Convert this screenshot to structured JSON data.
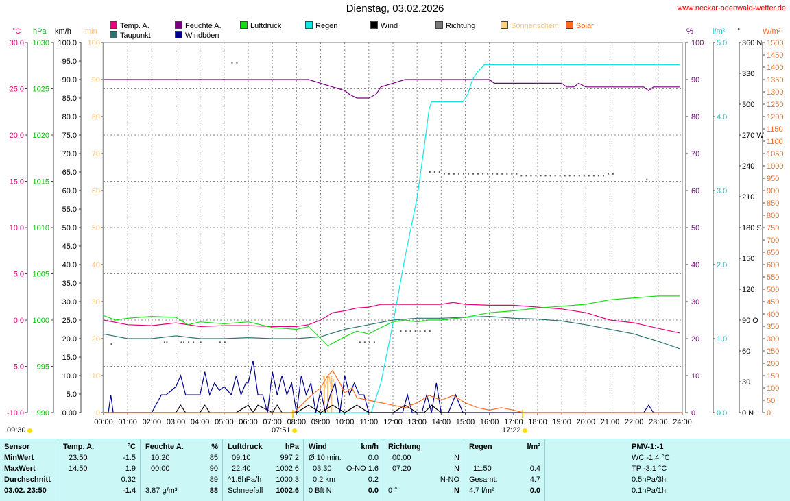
{
  "header": {
    "title": "Dienstag, 03.02.2026",
    "url": "www.neckar-odenwald-wetter.de"
  },
  "legend": [
    {
      "label": "Temp. A.",
      "color": "#e8007a"
    },
    {
      "label": "Feuchte A.",
      "color": "#7a0080"
    },
    {
      "label": "Luftdruck",
      "color": "#10e010"
    },
    {
      "label": "Regen",
      "color": "#10e8e8"
    },
    {
      "label": "Wind",
      "color": "#000000"
    },
    {
      "label": "Richtung",
      "color": "#7a7a7a"
    },
    {
      "label": "Sonnenschein",
      "color": "#ffd080"
    },
    {
      "label": "Solar",
      "color": "#ff6a20"
    },
    {
      "label": "Taupunkt",
      "color": "#2f7373"
    },
    {
      "label": "Windböen",
      "color": "#00008c"
    }
  ],
  "units": {
    "temp": "°C",
    "pressure": "hPa",
    "wind": "km/h",
    "sun": "min",
    "humidity": "%",
    "rain": "l/m²",
    "direction": "°",
    "solar": "W/m²"
  },
  "sun_times": {
    "left": "09:30",
    "rise": "07:51",
    "set": "17:22"
  },
  "chart_data": {
    "type": "line",
    "x_ticks": [
      "00:00",
      "01:00",
      "02:00",
      "03:00",
      "04:00",
      "05:00",
      "06:00",
      "07:00",
      "08:00",
      "09:00",
      "10:00",
      "11:00",
      "12:00",
      "13:00",
      "14:00",
      "15:00",
      "16:00",
      "17:00",
      "18:00",
      "19:00",
      "20:00",
      "21:00",
      "22:00",
      "23:00",
      "24:00"
    ],
    "axes": {
      "temp": {
        "ticks": [
          "30.0",
          "25.0",
          "20.0",
          "15.0",
          "10.0",
          "5.0",
          "0.0",
          "-5.0",
          "-10.0"
        ],
        "ylim": [
          -10,
          30
        ],
        "color": "#e8007a"
      },
      "pressure": {
        "ticks": [
          "1030",
          "1025",
          "1020",
          "1015",
          "1010",
          "1005",
          "1000",
          "995",
          "990"
        ],
        "ylim": [
          990,
          1030
        ],
        "color": "#10c010"
      },
      "wind": {
        "ticks": [
          "100.0",
          "95.0",
          "90.0",
          "85.0",
          "80.0",
          "75.0",
          "70.0",
          "65.0",
          "60.0",
          "55.0",
          "50.0",
          "45.0",
          "40.0",
          "35.0",
          "30.0",
          "25.0",
          "20.0",
          "15.0",
          "10.0",
          "5.0",
          "0.00"
        ],
        "ylim": [
          0,
          100
        ],
        "color": "#000000"
      },
      "sun": {
        "ticks": [
          "100",
          "90",
          "80",
          "70",
          "60",
          "50",
          "40",
          "30",
          "20",
          "10",
          "0"
        ],
        "ylim": [
          0,
          100
        ],
        "color": "#ffc070"
      },
      "humidity": {
        "ticks": [
          "100",
          "90",
          "80",
          "70",
          "60",
          "50",
          "40",
          "30",
          "20",
          "10",
          "0"
        ],
        "ylim": [
          0,
          100
        ],
        "color": "#7a0080"
      },
      "rain": {
        "ticks": [
          "5.0",
          "4.0",
          "3.0",
          "2.0",
          "1.0",
          "0.0"
        ],
        "ylim": [
          0,
          5
        ],
        "color": "#10c8c8"
      },
      "direction": {
        "ticks": [
          "360 N",
          "330",
          "300",
          "270 W",
          "240",
          "210",
          "180 S",
          "150",
          "120",
          "90 O",
          "60",
          "30",
          "0 N"
        ],
        "ylim": [
          0,
          360
        ],
        "color": "#000000"
      },
      "solar": {
        "ticks": [
          "1500",
          "1450",
          "1400",
          "1350",
          "1300",
          "1250",
          "1200",
          "1150",
          "1100",
          "1050",
          "1000",
          "950",
          "900",
          "850",
          "800",
          "750",
          "700",
          "650",
          "600",
          "550",
          "500",
          "450",
          "400",
          "350",
          "300",
          "250",
          "200",
          "150",
          "100",
          "50",
          "0"
        ],
        "ylim": [
          0,
          1500
        ],
        "color": "#ff6a20"
      }
    },
    "series": [
      {
        "name": "Feuchte A.",
        "axis": "humidity",
        "color": "#7a0080",
        "x": [
          0,
          8.5,
          9.0,
          9.5,
          10.0,
          10.2,
          10.5,
          11.0,
          11.3,
          11.5,
          12.0,
          12.5,
          13.0,
          14.0,
          15.0,
          16.0,
          16.2,
          17.0,
          18.0,
          19.0,
          19.2,
          19.5,
          19.7,
          20.0,
          21.0,
          22.0,
          22.4,
          22.6,
          22.8,
          23.0,
          23.9
        ],
        "y": [
          90,
          90,
          89,
          88,
          87,
          86,
          85,
          85,
          86,
          88,
          89,
          90,
          90,
          90,
          90,
          90,
          89,
          89,
          89,
          89,
          88,
          88,
          89,
          88,
          88,
          88,
          88,
          87,
          88,
          88,
          88
        ]
      },
      {
        "name": "Temp. A.",
        "axis": "temp",
        "color": "#e8007a",
        "x": [
          0,
          1,
          2,
          3,
          4,
          5,
          6,
          7,
          8,
          8.5,
          9,
          9.5,
          10,
          10.5,
          11,
          11.5,
          12,
          13,
          14,
          14.5,
          15,
          16,
          17,
          18,
          19,
          20,
          21,
          22,
          23,
          23.9
        ],
        "y": [
          0.0,
          -0.5,
          -0.6,
          -0.3,
          -0.7,
          -0.6,
          -0.6,
          -0.7,
          -0.7,
          -0.5,
          0.0,
          0.8,
          1.0,
          1.3,
          1.4,
          1.7,
          1.7,
          1.7,
          1.7,
          1.9,
          1.7,
          1.6,
          1.6,
          1.4,
          1.2,
          0.8,
          0.0,
          -0.3,
          -0.9,
          -1.4
        ]
      },
      {
        "name": "Taupunkt",
        "axis": "temp",
        "color": "#2f7373",
        "x": [
          0,
          1,
          2,
          3,
          4,
          5,
          6,
          7,
          8,
          9,
          10,
          11,
          12,
          13,
          14,
          15,
          16,
          17,
          18,
          19,
          20,
          21,
          22,
          23,
          23.9
        ],
        "y": [
          -1.5,
          -2.0,
          -2.0,
          -1.7,
          -2.0,
          -2.0,
          -1.9,
          -2.0,
          -2.0,
          -1.8,
          -1.0,
          -0.5,
          0.0,
          0.2,
          0.2,
          0.3,
          0.4,
          0.2,
          0.1,
          -0.1,
          -0.5,
          -1.0,
          -1.5,
          -2.3,
          -3.1
        ]
      },
      {
        "name": "Luftdruck",
        "axis": "pressure",
        "color": "#10e010",
        "x": [
          0,
          0.5,
          1,
          2,
          3,
          3.5,
          4,
          5,
          6,
          7,
          8,
          8.5,
          9,
          9.3,
          9.5,
          10,
          10.5,
          11,
          11.5,
          12,
          12.5,
          13,
          13.5,
          14,
          15,
          16,
          17,
          18,
          19,
          20,
          21,
          22,
          23,
          23.9
        ],
        "y": [
          1000.5,
          1000.0,
          1000.2,
          1000.4,
          1000.3,
          999.5,
          999.8,
          999.6,
          999.8,
          999.2,
          999.0,
          999.3,
          998.0,
          997.2,
          997.5,
          998.2,
          998.8,
          998.5,
          999.2,
          999.8,
          1000.0,
          999.8,
          1000.0,
          1000.0,
          1000.3,
          1000.8,
          1001.0,
          1001.3,
          1001.5,
          1001.7,
          1002.2,
          1002.4,
          1002.6,
          1002.6
        ]
      },
      {
        "name": "Regen",
        "axis": "rain",
        "color": "#10e8e8",
        "x": [
          0,
          11.1,
          11.5,
          12.0,
          12.5,
          13.0,
          13.3,
          13.5,
          13.6,
          14.0,
          14.5,
          14.9,
          15.1,
          15.3,
          15.5,
          15.8,
          16.0,
          17.0,
          18.0,
          19.0,
          20.0,
          21.0,
          22.0,
          23.0,
          23.9
        ],
        "y": [
          0,
          0,
          0.4,
          1.2,
          2.1,
          2.9,
          3.6,
          4.1,
          4.2,
          4.2,
          4.2,
          4.2,
          4.3,
          4.5,
          4.6,
          4.7,
          4.7,
          4.7,
          4.7,
          4.7,
          4.7,
          4.7,
          4.7,
          4.7,
          4.7
        ]
      },
      {
        "name": "Windböen",
        "axis": "wind",
        "color": "#00008c",
        "x": [
          0,
          0.2,
          0.3,
          0.4,
          0.6,
          1,
          2,
          2.4,
          2.6,
          3.0,
          3.2,
          3.4,
          3.6,
          4.0,
          4.2,
          4.4,
          4.6,
          4.8,
          5.0,
          5.3,
          5.5,
          5.7,
          5.9,
          6.0,
          6.2,
          6.4,
          6.6,
          6.8,
          7.0,
          7.2,
          7.4,
          7.6,
          7.8,
          8.0,
          8.2,
          8.4,
          8.6,
          8.8,
          9.0,
          9.2,
          9.4,
          9.6,
          9.8,
          10.0,
          10.2,
          10.4,
          10.6,
          10.8,
          11.0,
          11.2,
          11.4,
          11.6,
          12,
          12.4,
          12.6,
          12.8,
          13,
          13.2,
          13.4,
          13.6,
          13.8,
          14,
          14.3,
          14.6,
          14.9,
          15,
          16,
          17,
          18,
          19,
          20,
          21,
          22,
          22.4,
          22.6,
          22.8,
          23,
          23.9
        ],
        "y": [
          0,
          0,
          4.8,
          0,
          0,
          0,
          0,
          4.8,
          4.8,
          7.0,
          10.0,
          4.8,
          4.8,
          4.8,
          11.0,
          4.8,
          8.0,
          6.0,
          7.0,
          4.8,
          10.0,
          4.8,
          8.0,
          8.0,
          14.0,
          4.8,
          4.8,
          0,
          11.0,
          4.8,
          10.0,
          4.8,
          8.0,
          0,
          10.0,
          4.8,
          8.0,
          0,
          6.0,
          0,
          4.8,
          8.0,
          0,
          10.0,
          4.8,
          8.0,
          4.8,
          4.8,
          0,
          0,
          0,
          0,
          0,
          0,
          4.8,
          0,
          0,
          0,
          4.8,
          0,
          8.0,
          0,
          0,
          4.8,
          0,
          0,
          0,
          0,
          0,
          0,
          0,
          0,
          0,
          0,
          2.0,
          0,
          0,
          0
        ]
      },
      {
        "name": "Wind",
        "axis": "wind",
        "color": "#000000",
        "x": [
          0,
          3.0,
          3.2,
          3.4,
          4.0,
          4.2,
          4.4,
          5.0,
          5.5,
          6.0,
          6.2,
          6.4,
          7.0,
          7.2,
          7.4,
          8.0,
          8.5,
          9.0,
          9.5,
          10.0,
          10.5,
          11.0,
          12,
          12.5,
          13.0,
          13.3,
          13.6,
          14,
          15
        ],
        "y": [
          0,
          0,
          2.0,
          0,
          0,
          2.0,
          0,
          0,
          0,
          2.0,
          0,
          2.0,
          0,
          2.0,
          0,
          0,
          2.0,
          0,
          2.0,
          0,
          2.0,
          0,
          0,
          2.0,
          0,
          0,
          2.0,
          0,
          0
        ]
      },
      {
        "name": "Solar",
        "axis": "solar",
        "color": "#ff6a20",
        "x": [
          0,
          7.9,
          8.2,
          8.5,
          9.0,
          9.3,
          9.5,
          9.8,
          10.0,
          10.3,
          10.5,
          11.0,
          11.5,
          12.0,
          12.5,
          13.0,
          13.5,
          14.0,
          14.5,
          15.0,
          15.5,
          16.0,
          16.5,
          17.0,
          17.4,
          24
        ],
        "y": [
          0,
          0,
          30,
          60,
          100,
          150,
          170,
          120,
          80,
          100,
          60,
          50,
          40,
          30,
          20,
          40,
          70,
          50,
          70,
          40,
          20,
          10,
          20,
          10,
          0,
          0
        ]
      },
      {
        "name": "Sonnenschein",
        "axis": "sun",
        "color": "#ffc070",
        "x": [
          9.1,
          9.2,
          9.35,
          9.45,
          9.55
        ],
        "y": [
          10,
          7,
          10,
          6,
          9
        ]
      }
    ],
    "direction_dots": [
      {
        "x": [
          5.3,
          5.5
        ],
        "y": [
          94.5,
          94.5
        ]
      },
      {
        "x": [
          0.3,
          2.5,
          2.6,
          3.2,
          3.3,
          3.5,
          3.7,
          4.0,
          4.8,
          5.0
        ],
        "y": [
          18.5,
          19,
          19,
          19,
          19,
          19,
          19,
          19,
          19,
          19
        ]
      },
      {
        "x": [
          10.6,
          10.8,
          11.0,
          11.2
        ],
        "y": [
          19,
          19,
          19,
          19
        ]
      },
      {
        "x": [
          12.3,
          12.5,
          12.7,
          12.9,
          13.1,
          13.3,
          13.5
        ],
        "y": [
          22,
          22,
          22,
          22,
          22,
          22,
          22
        ]
      },
      {
        "x": [
          13.5,
          13.7,
          13.9,
          14.1,
          14.3,
          14.5,
          14.7,
          14.9,
          15.1,
          15.3,
          15.5,
          15.7,
          15.9,
          16.1,
          16.3,
          16.5,
          16.7,
          16.9,
          17.1,
          17.3,
          17.5,
          17.7,
          17.9,
          18.1,
          18.3,
          18.5,
          18.7,
          18.9,
          19.1,
          19.3,
          19.5,
          19.7,
          19.9,
          20.1,
          20.3,
          20.5,
          20.7,
          20.9,
          21.1,
          22.5
        ],
        "y": [
          65,
          65,
          65,
          64.5,
          64.5,
          64.5,
          64.5,
          64.5,
          64.5,
          64.5,
          64.5,
          64.5,
          64.5,
          64.5,
          64.5,
          64.5,
          64.5,
          64.5,
          64.5,
          64,
          64,
          64,
          64,
          64,
          64,
          64,
          64,
          64,
          64,
          64,
          64,
          64,
          64,
          64,
          64,
          64,
          64,
          64.5,
          64.5,
          63
        ]
      }
    ],
    "sun_bars": [
      {
        "x": 9.15,
        "y": 10
      },
      {
        "x": 9.3,
        "y": 10
      },
      {
        "x": 9.45,
        "y": 10
      }
    ]
  },
  "table": {
    "sensor": {
      "header": "Sensor",
      "rows": [
        "MinWert",
        "MaxWert",
        "Durchschnitt",
        "03.02. 23:50"
      ]
    },
    "temp": {
      "header": "Temp. A.",
      "unit": "°C",
      "times": [
        "23:50",
        "14:50",
        "",
        ""
      ],
      "values": [
        "-1.5",
        "1.9",
        "0.32",
        "-1.4"
      ]
    },
    "humidity": {
      "header": "Feuchte A.",
      "unit": "%",
      "times": [
        "10:20",
        "00:00",
        "",
        "3.87 g/m³"
      ],
      "values": [
        "85",
        "90",
        "89",
        "88"
      ]
    },
    "pressure": {
      "header": "Luftdruck",
      "unit": "hPa",
      "times": [
        "09:10",
        "22:40",
        "^1.5hPa/h",
        "Schneefall"
      ],
      "values": [
        "997.2",
        "1002.6",
        "1000.3",
        "1002.6"
      ]
    },
    "wind": {
      "header": "Wind",
      "unit": "km/h",
      "times": [
        "Ø 10 min.",
        "03:30",
        "0,2 km",
        "0 Bft N"
      ],
      "values": [
        "0.0",
        "O-NO 1.6",
        "0.2",
        "0.0"
      ]
    },
    "direction": {
      "header": "Richtung",
      "times": [
        "00:00",
        "07:20",
        "",
        "0 °"
      ],
      "values": [
        "N",
        "N",
        "N-NO",
        "N"
      ]
    },
    "rain": {
      "header": "Regen",
      "unit": "l/m²",
      "times": [
        "",
        "11:50",
        "Gesamt:",
        "4.7 l/m²"
      ],
      "values": [
        "",
        "0.4",
        "4.7",
        "0.0"
      ]
    },
    "pmv": {
      "header": "PMV-1:-1",
      "rows": [
        "WC -1.4 °C",
        "TP -3.1 °C",
        "0.5hPa/3h",
        "0.1hPa/1h"
      ]
    }
  }
}
